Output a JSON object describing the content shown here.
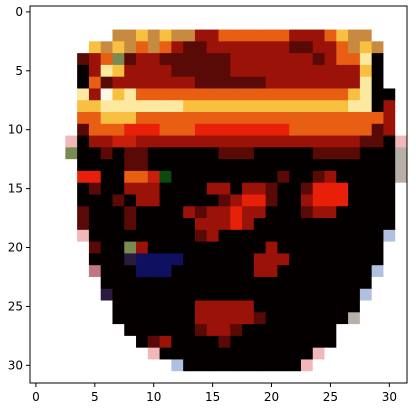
{
  "chart_data": {
    "type": "heatmap",
    "title": "",
    "xlabel": "",
    "ylabel": "",
    "grid": false,
    "image_size": [
      32,
      32
    ],
    "xlim": [
      -0.5,
      31.5
    ],
    "ylim": [
      31.5,
      -0.5
    ],
    "y_axis_inverted": true,
    "x_ticks": [
      0,
      5,
      10,
      15,
      20,
      25,
      30
    ],
    "y_ticks": [
      0,
      5,
      10,
      15,
      20,
      25,
      30
    ],
    "x_tick_labels": [
      "0",
      "5",
      "10",
      "15",
      "20",
      "25",
      "30"
    ],
    "y_tick_labels": [
      "0",
      "5",
      "10",
      "15",
      "20",
      "25",
      "30"
    ],
    "palette": {
      "W": "#ffffff",
      "K": "#050000",
      "D": "#2a0303",
      "M": "#5a0a06",
      "R": "#9a1208",
      "C": "#c81e0c",
      "r": "#e8200a",
      "O": "#e85e12",
      "o": "#f08a1c",
      "Y": "#f8c040",
      "P": "#fde8a0",
      "L": "#fff8e8",
      "T": "#c88a40",
      "B": "#101060",
      "b": "#b0c0e0",
      "G": "#7a8a50",
      "g": "#0a4a10",
      "p": "#f0b8b8",
      "q": "#c07880",
      "s": "#b8b0a8",
      "n": "#2a1a40"
    },
    "rows": [
      "WWWWWWWWWWWWWWWWWWWWWWWWWWWWWWWW",
      "WWWWWWWWWWWWWWWWWWWWWWWWWWWWWWWW",
      "WWWWWWWTTYTYTTRROOOOOORRROYTTWWW",
      "WWWWWYTYTOTORMMRRRRRRRMMRROTYTWW",
      "WWWWMROGMRRMMMMMMRRRRRRRMROOPKWW",
      "WWWWKRPYRRRRMMMMMRRRRRRRRRRRYKWW",
      "WWWWKOMRRRRRRRMMMMMMRRRRRRRRPKWW",
      "WWWWPRLYPOOOOOOOOOOOOOOOOOOYPKKW",
      "WWWWYYPPPPPPPYYYYYYYYYYYYYYPPKRW",
      "WWWWOOYYYOOOOOOOOOOOOOOOOOOOOORW",
      "WWWWMOOOrrrOOOrrrrrrrrOOOOOOOMRW",
      "WWWpKRRCCRRRRRRRRRRRRRRRRRRRMMKp",
      "WWWGKKMKMMKKKKKKMMMKKKKKMMMMKKKs",
      "WWWWKKKKMMKKKKKKKKKKKKKKKKKKKKKs",
      "WWWWrrKKOOCgKKKKKKKKKMKKMRKKKKKs",
      "WWWWKMKKRRRKKKKRRKRRMKKMrrrKKKKW",
      "WWWWKKKMKRRKKKKKMRrrMKKRrrrKKKKW",
      "WWWWMKKKMKKKKRMRRrRRKKKMRRKKKKKW",
      "WWWWMKKKMKKKKKRRRrRKKKKKKKKKKKKW",
      "WWWWpKKKKKKKKKMRKKKKKKKKKKKKKKbW",
      "WWWWWMKKGRKKKKKKKKKKRKKKKKKKKKWW",
      "WWWWWKKKnBBBBKKKKKKRRRKKKKKKKKWW",
      "WWWWWqKKKBBBKKKKKKKRRKKKKKKKKbWW",
      "WWWWWWKKKKKKKKKKKKKKKKKKKKKKKWWW",
      "WWWWWWnKKKKKKKKKKKKKKKKKKKKKbWWW",
      "WWWWWWWKKKKKKKRRRRRKKKKKKKKKWWWW",
      "WWWWWWWKKKKKKKRRRRRMKKKKKKKsWWWW",
      "WWWWWWWWKKKKKKMRRMKKKKKKKKWWWWWW",
      "WWWWWWWWWKMRKKKKMKKKKKKKKKWWWWWW",
      "WWWWWWWWWWpKKKKKKKKKKKKKpWWWWWWW",
      "WWWWWWWWWWWWbKKKKKKKKKKpWWWWWWWW",
      "WWWWWWWWWWWWWWWWWWWWWWWWWWWWWWWW"
    ]
  }
}
